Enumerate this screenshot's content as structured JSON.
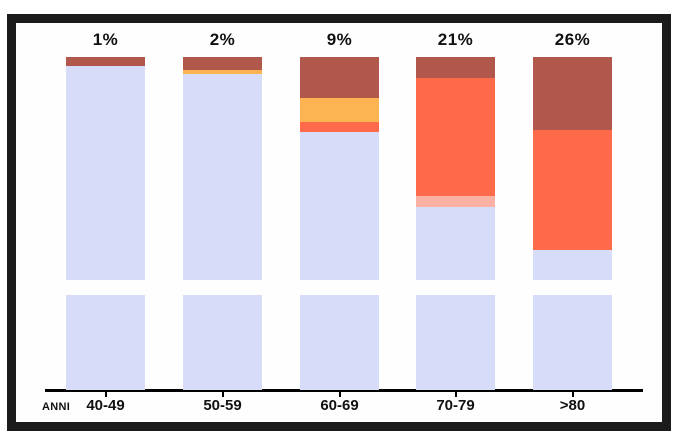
{
  "chart_data": {
    "type": "bar",
    "stacked": true,
    "title": "",
    "xlabel": "ANNI",
    "ylabel": "",
    "legend": "none",
    "grid": false,
    "categories": [
      "40-49",
      "50-59",
      "60-69",
      "70-79",
      ">80"
    ],
    "top_labels": [
      "1%",
      "2%",
      "9%",
      "21%",
      "26%"
    ],
    "segment_unit": "percent of upper bar height, listed top to bottom",
    "bars": [
      {
        "category": "40-49",
        "top_label": "1%",
        "segments": [
          {
            "name": "dark-red",
            "value": 4.0
          },
          {
            "name": "lavender",
            "value": 96.0
          }
        ]
      },
      {
        "category": "50-59",
        "top_label": "2%",
        "segments": [
          {
            "name": "dark-red",
            "value": 5.8
          },
          {
            "name": "orange",
            "value": 1.8
          },
          {
            "name": "lavender",
            "value": 92.4
          }
        ]
      },
      {
        "category": "60-69",
        "top_label": "9%",
        "segments": [
          {
            "name": "dark-red",
            "value": 18.4
          },
          {
            "name": "orange",
            "value": 10.8
          },
          {
            "name": "tomato",
            "value": 4.5
          },
          {
            "name": "lavender",
            "value": 66.3
          }
        ]
      },
      {
        "category": "70-79",
        "top_label": "21%",
        "segments": [
          {
            "name": "dark-red",
            "value": 9.4
          },
          {
            "name": "tomato",
            "value": 52.9
          },
          {
            "name": "pink",
            "value": 4.9
          },
          {
            "name": "lavender",
            "value": 32.8
          }
        ]
      },
      {
        "category": ">80",
        "top_label": "26%",
        "segments": [
          {
            "name": "dark-red",
            "value": 32.7
          },
          {
            "name": "tomato",
            "value": 53.8
          },
          {
            "name": "lavender",
            "value": 13.5
          }
        ]
      }
    ],
    "lower_block": {
      "name": "lavender",
      "note": "detached light block at the base of every column, sitting on the axis"
    },
    "colors": {
      "lavender": "#d7ddf8",
      "dark-red": "#b2574c",
      "orange": "#fcb351",
      "tomato": "#ff6a4b",
      "pink": "#fbb2a4",
      "axis": "#000000",
      "frame": "#1b1b1b",
      "text": "#111111"
    }
  }
}
